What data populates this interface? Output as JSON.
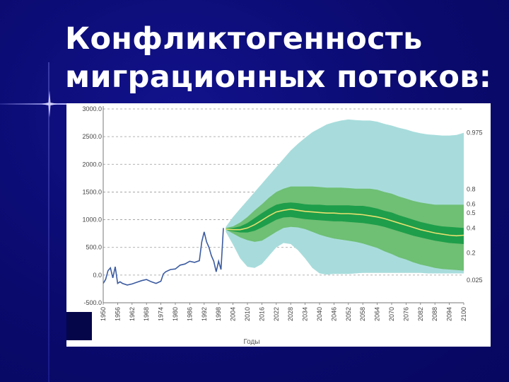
{
  "slide": {
    "title_line1": "Конфликтогенность",
    "title_line2": "миграционных потоков:"
  },
  "chart_data": {
    "type": "area",
    "xlabel": "Годы",
    "ylabel": "",
    "xlim": [
      1950,
      2100
    ],
    "ylim": [
      -500,
      3000
    ],
    "y_ticks": [
      "3000.0",
      "2500.0",
      "2000.0",
      "1500.0",
      "1000.0",
      "500.0",
      "0.0",
      "-500.0"
    ],
    "y_tick_values": [
      3000,
      2500,
      2000,
      1500,
      1000,
      500,
      0,
      -500
    ],
    "x_ticks": [
      1950,
      1956,
      1962,
      1968,
      1974,
      1980,
      1986,
      1992,
      1998,
      2004,
      2010,
      2016,
      2022,
      2028,
      2034,
      2040,
      2046,
      2052,
      2058,
      2064,
      2070,
      2076,
      2082,
      2088,
      2094,
      2100
    ],
    "grid": "horizontal dashed",
    "colors": {
      "band_975": "#a8dcdc",
      "band_8": "#6fbf74",
      "band_6": "#1e9e4a",
      "median": "#e8e070",
      "history": "#3b5ba0"
    },
    "historical": {
      "x": [
        1950,
        1951,
        1952,
        1953,
        1954,
        1955,
        1956,
        1957,
        1958,
        1960,
        1962,
        1964,
        1966,
        1968,
        1970,
        1972,
        1974,
        1975,
        1976,
        1978,
        1980,
        1982,
        1984,
        1986,
        1988,
        1990,
        1991,
        1992,
        1993,
        1994,
        1995,
        1996,
        1997,
        1998,
        1999,
        2000
      ],
      "y": [
        -150,
        -80,
        80,
        130,
        -50,
        150,
        -150,
        -120,
        -150,
        -180,
        -160,
        -130,
        -100,
        -80,
        -120,
        -150,
        -110,
        20,
        60,
        100,
        110,
        180,
        200,
        250,
        230,
        260,
        600,
        780,
        600,
        500,
        350,
        250,
        60,
        250,
        100,
        850
      ]
    },
    "projection": {
      "x": [
        2001,
        2004,
        2007,
        2010,
        2013,
        2016,
        2019,
        2022,
        2025,
        2028,
        2031,
        2034,
        2037,
        2040,
        2043,
        2046,
        2049,
        2052,
        2055,
        2058,
        2061,
        2064,
        2067,
        2070,
        2073,
        2076,
        2079,
        2082,
        2085,
        2088,
        2091,
        2094,
        2097,
        2100
      ],
      "p975_upper": [
        870,
        1050,
        1200,
        1350,
        1500,
        1650,
        1800,
        1950,
        2100,
        2250,
        2370,
        2480,
        2580,
        2650,
        2720,
        2760,
        2790,
        2810,
        2800,
        2790,
        2790,
        2770,
        2730,
        2700,
        2660,
        2630,
        2590,
        2560,
        2540,
        2530,
        2520,
        2520,
        2530,
        2570
      ],
      "p975_lower": [
        780,
        550,
        300,
        150,
        130,
        200,
        350,
        500,
        580,
        560,
        450,
        300,
        130,
        30,
        10,
        20,
        20,
        20,
        30,
        40,
        40,
        40,
        40,
        40,
        40,
        40,
        40,
        40,
        30,
        30,
        30,
        30,
        30,
        30
      ],
      "p8_upper": [
        850,
        880,
        950,
        1050,
        1170,
        1280,
        1400,
        1500,
        1560,
        1600,
        1600,
        1600,
        1600,
        1590,
        1580,
        1580,
        1580,
        1570,
        1560,
        1560,
        1560,
        1540,
        1500,
        1470,
        1420,
        1380,
        1340,
        1310,
        1290,
        1270,
        1270,
        1270,
        1270,
        1270
      ],
      "p8_lower": [
        820,
        750,
        680,
        630,
        600,
        620,
        700,
        780,
        850,
        870,
        860,
        830,
        780,
        730,
        690,
        660,
        640,
        620,
        600,
        570,
        530,
        490,
        430,
        380,
        320,
        280,
        230,
        190,
        160,
        130,
        110,
        100,
        90,
        80
      ],
      "p6_upper": [
        840,
        850,
        880,
        940,
        1030,
        1120,
        1200,
        1270,
        1300,
        1310,
        1300,
        1280,
        1270,
        1270,
        1260,
        1260,
        1260,
        1260,
        1250,
        1250,
        1230,
        1200,
        1160,
        1130,
        1080,
        1040,
        1000,
        960,
        930,
        900,
        880,
        870,
        860,
        850
      ],
      "p6_lower": [
        820,
        790,
        770,
        770,
        800,
        860,
        930,
        1000,
        1040,
        1050,
        1030,
        1010,
        1000,
        990,
        980,
        970,
        970,
        960,
        950,
        940,
        920,
        900,
        870,
        830,
        790,
        750,
        710,
        680,
        650,
        620,
        600,
        580,
        570,
        560
      ],
      "median": [
        830,
        820,
        820,
        850,
        910,
        990,
        1070,
        1140,
        1170,
        1190,
        1170,
        1150,
        1140,
        1130,
        1120,
        1120,
        1110,
        1110,
        1100,
        1090,
        1070,
        1050,
        1020,
        980,
        940,
        900,
        860,
        820,
        790,
        760,
        740,
        720,
        710,
        720
      ]
    },
    "band_labels": [
      "0.975",
      "0.8",
      "0.6",
      "0.5",
      "0.4",
      "0.2",
      "0.025"
    ],
    "band_label_values": [
      2570,
      1550,
      1280,
      1120,
      850,
      400,
      -90
    ]
  }
}
